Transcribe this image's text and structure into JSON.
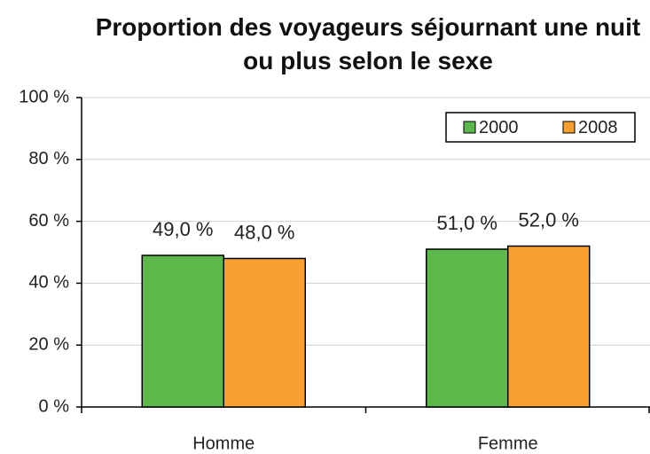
{
  "chart_data": {
    "type": "bar",
    "title": "Proportion des voyageurs séjournant une nuit ou plus selon le sexe",
    "categories": [
      "Homme",
      "Femme"
    ],
    "series": [
      {
        "name": "2000",
        "color": "#5cb84a",
        "values": [
          49,
          51
        ],
        "value_labels": [
          "49,0 %",
          "51,0 %"
        ]
      },
      {
        "name": "2008",
        "color": "#f7a030",
        "values": [
          48,
          52
        ],
        "value_labels": [
          "48,0 %",
          "52,0 %"
        ]
      }
    ],
    "ylim": [
      0,
      100
    ],
    "yticks": [
      {
        "value": 0,
        "label": "0 %"
      },
      {
        "value": 20,
        "label": "20 %"
      },
      {
        "value": 40,
        "label": "40 %"
      },
      {
        "value": 60,
        "label": "60 %"
      },
      {
        "value": 80,
        "label": "80 %"
      },
      {
        "value": 100,
        "label": "100 %"
      }
    ],
    "grid": true,
    "legend": "top-right"
  }
}
